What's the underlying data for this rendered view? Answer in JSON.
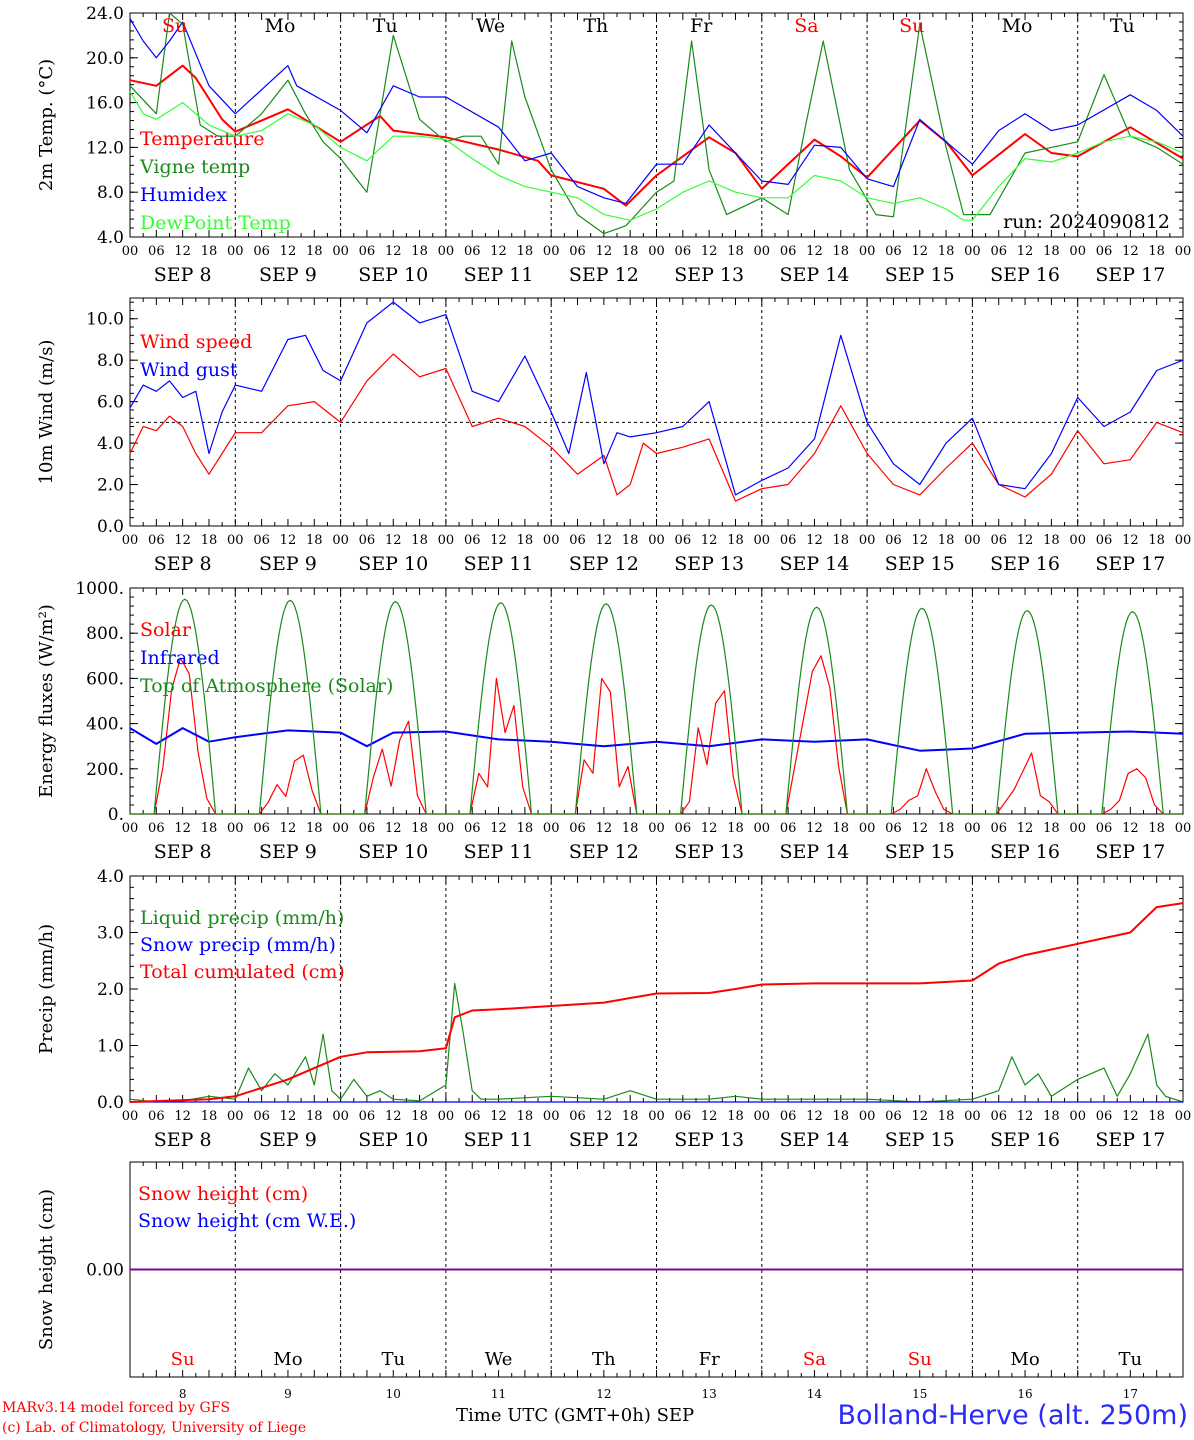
{
  "colors": {
    "red": "#ff0000",
    "green": "#1a8a1a",
    "blue": "#0000ff",
    "lightgreen": "#33ff33",
    "purple": "#8000a0"
  },
  "run_label": "run: 2024090812",
  "day_labels": [
    "Su",
    "Mo",
    "Tu",
    "We",
    "Th",
    "Fr",
    "Sa",
    "Su",
    "Mo",
    "Tu"
  ],
  "weekend_days": [
    0,
    6,
    7
  ],
  "date_labels": [
    "SEP  8",
    "SEP  9",
    "SEP 10",
    "SEP 11",
    "SEP 12",
    "SEP 13",
    "SEP 14",
    "SEP 15",
    "SEP 16",
    "SEP 17"
  ],
  "hour_labels": [
    "00",
    "06",
    "12",
    "18"
  ],
  "bottom_day_numbers": [
    "8",
    "9",
    "10",
    "11",
    "12",
    "13",
    "14",
    "15",
    "16",
    "17"
  ],
  "footer": {
    "model": "MARv3.14 model forced by GFS",
    "lab": "(c) Lab. of Climatology, University of Liege",
    "time_axis": "Time UTC (GMT+0h) SEP",
    "station": "Bolland-Herve (alt. 250m)"
  },
  "chart_data": [
    {
      "type": "line",
      "ylabel": "2m Temp. (°C)",
      "ylim": [
        4,
        24
      ],
      "yticks": [
        4,
        8,
        12,
        16,
        20,
        24
      ],
      "ytick_labels": [
        "4.0",
        "8.0",
        "12.0",
        "16.0",
        "20.0",
        "24.0"
      ],
      "x_range_hours": [
        0,
        240
      ],
      "x_unit": "hours since 2024-09-08 00 UTC",
      "series": [
        {
          "name": "Temperature",
          "color": "red",
          "x": [
            0,
            6,
            12,
            15,
            21,
            24,
            36,
            39,
            48,
            57,
            60,
            72,
            84,
            93,
            96,
            108,
            113,
            120,
            132,
            138,
            144,
            156,
            162,
            168,
            180,
            186,
            192,
            204,
            210,
            216,
            228,
            240
          ],
          "y": [
            18,
            17.5,
            19.3,
            18.2,
            14.5,
            13.4,
            15.4,
            14.7,
            12.5,
            14.8,
            13.5,
            12.9,
            11.8,
            10.8,
            9.5,
            8.3,
            6.8,
            9.5,
            12.9,
            11.5,
            8.3,
            12.7,
            11.2,
            9.3,
            14.4,
            12.5,
            9.5,
            13.2,
            11.5,
            11.2,
            13.8,
            11
          ]
        },
        {
          "name": "Vigne temp",
          "color": "green",
          "x": [
            0,
            6,
            9,
            12,
            16,
            20,
            24,
            30,
            36,
            40,
            44,
            48,
            54,
            60,
            66,
            72,
            76,
            80,
            84,
            87,
            90,
            96,
            102,
            108,
            113,
            120,
            124,
            128,
            132,
            136,
            144,
            150,
            154,
            158,
            164,
            170,
            174,
            180,
            186,
            190,
            196,
            204,
            210,
            216,
            222,
            228,
            234,
            240
          ],
          "y": [
            17.5,
            15,
            24,
            23,
            14,
            13,
            13,
            15,
            18,
            15,
            12.5,
            11,
            8,
            22,
            14.5,
            12.5,
            13,
            13,
            10.5,
            21.5,
            16.5,
            10,
            6,
            4.3,
            5,
            8,
            9,
            21.5,
            10,
            6,
            7.5,
            6,
            14,
            21.5,
            10,
            6,
            5.8,
            23,
            12,
            6,
            6,
            11.5,
            12,
            12.5,
            18.5,
            13,
            12,
            10.5
          ]
        },
        {
          "name": "Humidex",
          "color": "blue",
          "x": [
            0,
            3,
            6,
            9,
            12,
            18,
            24,
            36,
            38,
            48,
            54,
            60,
            66,
            72,
            84,
            90,
            96,
            102,
            108,
            113,
            120,
            126,
            132,
            138,
            144,
            150,
            156,
            162,
            168,
            174,
            180,
            186,
            192,
            198,
            204,
            210,
            216,
            228,
            234,
            240
          ],
          "y": [
            23.5,
            21.5,
            20,
            21.5,
            23.2,
            17.5,
            15,
            19.3,
            17.5,
            15.3,
            13.3,
            17.5,
            16.5,
            16.5,
            13.8,
            10.8,
            11.5,
            8.5,
            7.5,
            7,
            10.5,
            10.5,
            14,
            11.5,
            9,
            8.7,
            12.2,
            12,
            9.2,
            8.5,
            14.5,
            12.5,
            10.5,
            13.5,
            15,
            13.5,
            14,
            16.7,
            15.3,
            13
          ]
        },
        {
          "name": "DewPoint Temp",
          "color": "lightgreen",
          "x": [
            0,
            3,
            6,
            12,
            18,
            24,
            30,
            36,
            42,
            48,
            54,
            60,
            66,
            72,
            78,
            84,
            90,
            96,
            102,
            108,
            114,
            120,
            126,
            132,
            138,
            144,
            150,
            156,
            162,
            168,
            174,
            180,
            186,
            190,
            192,
            198,
            204,
            210,
            216,
            222,
            228,
            234,
            240
          ],
          "y": [
            17,
            15,
            14.5,
            16,
            14,
            13,
            13.5,
            15,
            14,
            12,
            10.8,
            13,
            13,
            12.7,
            11,
            9.5,
            8.5,
            8,
            7.5,
            6,
            5.5,
            6.5,
            8,
            9,
            8,
            7.5,
            7.5,
            9.5,
            9,
            7.5,
            7,
            7.5,
            6.5,
            5.5,
            5.5,
            8.5,
            11,
            10.7,
            11.5,
            12.5,
            13,
            12.5,
            11.5
          ]
        }
      ]
    },
    {
      "type": "line",
      "ylabel": "10m Wind (m/s)",
      "ylim": [
        0,
        11
      ],
      "yticks": [
        0,
        2,
        4,
        6,
        8,
        10
      ],
      "ytick_labels": [
        "0.0",
        "2.0",
        "4.0",
        "6.0",
        "8.0",
        "10.0"
      ],
      "reference_line": 5,
      "x_range_hours": [
        0,
        240
      ],
      "series": [
        {
          "name": "Wind speed",
          "color": "red",
          "x": [
            0,
            3,
            6,
            9,
            12,
            15,
            18,
            21,
            24,
            30,
            36,
            42,
            48,
            54,
            60,
            66,
            72,
            78,
            84,
            90,
            96,
            102,
            108,
            111,
            114,
            117,
            120,
            126,
            132,
            138,
            144,
            150,
            156,
            162,
            168,
            174,
            180,
            186,
            192,
            198,
            204,
            210,
            216,
            222,
            228,
            234,
            240
          ],
          "y": [
            3.5,
            4.8,
            4.6,
            5.3,
            4.8,
            3.5,
            2.5,
            3.5,
            4.5,
            4.5,
            5.8,
            6,
            5,
            7,
            8.3,
            7.2,
            7.6,
            4.8,
            5.2,
            4.8,
            3.8,
            2.5,
            3.4,
            1.5,
            2,
            4,
            3.5,
            3.8,
            4.2,
            1.2,
            1.8,
            2,
            3.5,
            5.8,
            3.5,
            2,
            1.5,
            2.8,
            4,
            2,
            1.4,
            2.5,
            4.6,
            3,
            3.2,
            5,
            4.5
          ]
        },
        {
          "name": "Wind gust",
          "color": "blue",
          "x": [
            0,
            3,
            6,
            9,
            12,
            15,
            18,
            21,
            24,
            30,
            36,
            40,
            44,
            48,
            54,
            60,
            63,
            66,
            72,
            78,
            84,
            90,
            96,
            100,
            104,
            108,
            111,
            114,
            120,
            126,
            132,
            138,
            144,
            150,
            156,
            162,
            168,
            174,
            180,
            186,
            192,
            198,
            204,
            210,
            216,
            222,
            228,
            234,
            240
          ],
          "y": [
            5.7,
            6.8,
            6.5,
            7,
            6.2,
            6.5,
            3.5,
            5.5,
            6.8,
            6.5,
            9,
            9.2,
            7.5,
            7,
            9.8,
            10.8,
            10.3,
            9.8,
            10.2,
            6.5,
            6,
            8.2,
            5.5,
            3.5,
            7.4,
            3,
            4.5,
            4.3,
            4.5,
            4.8,
            6,
            1.5,
            2.2,
            2.8,
            4.2,
            9.2,
            5,
            3,
            2,
            4,
            5.2,
            2,
            1.8,
            3.5,
            6.2,
            4.8,
            5.5,
            7.5,
            8
          ]
        }
      ]
    },
    {
      "type": "line",
      "ylabel": "Energy fluxes (W/m²)",
      "ylim": [
        0,
        1000
      ],
      "yticks": [
        0,
        200,
        400,
        600,
        800,
        1000
      ],
      "ytick_labels": [
        "0.",
        "200.",
        "400.",
        "600.",
        "800.",
        "1000."
      ],
      "x_range_hours": [
        0,
        240
      ],
      "series": [
        {
          "name": "Solar",
          "color": "red",
          "peaks": [
            690,
            260,
            410,
            600,
            600,
            545,
            700,
            200,
            270,
            200
          ]
        },
        {
          "name": "Infrared",
          "color": "blue",
          "x": [
            0,
            6,
            12,
            18,
            24,
            36,
            48,
            54,
            60,
            72,
            84,
            96,
            108,
            120,
            132,
            144,
            156,
            168,
            180,
            192,
            204,
            216,
            228,
            240
          ],
          "y": [
            380,
            310,
            380,
            320,
            340,
            370,
            360,
            300,
            360,
            365,
            330,
            320,
            300,
            320,
            300,
            330,
            320,
            330,
            280,
            290,
            355,
            360,
            365,
            355
          ]
        },
        {
          "name": "Top of Atmosphere (Solar)",
          "color": "green",
          "peaks": [
            950,
            945,
            940,
            935,
            930,
            925,
            915,
            910,
            900,
            895
          ]
        }
      ]
    },
    {
      "type": "line",
      "ylabel": "Precip (mm/h)",
      "ylim": [
        0,
        4
      ],
      "yticks": [
        0,
        1,
        2,
        3,
        4
      ],
      "ytick_labels": [
        "0.0",
        "1.0",
        "2.0",
        "3.0",
        "4.0"
      ],
      "x_range_hours": [
        0,
        240
      ],
      "series": [
        {
          "name": "Liquid precip (mm/h)",
          "color": "green",
          "x": [
            0,
            6,
            12,
            18,
            24,
            27,
            30,
            33,
            36,
            40,
            42,
            44,
            46,
            48,
            51,
            54,
            57,
            60,
            66,
            72,
            74,
            76,
            78,
            80,
            84,
            96,
            108,
            114,
            120,
            132,
            138,
            144,
            156,
            168,
            180,
            192,
            198,
            201,
            204,
            207,
            210,
            216,
            222,
            225,
            228,
            232,
            234,
            236,
            240
          ],
          "y": [
            0.05,
            0,
            0.02,
            0.1,
            0.05,
            0.6,
            0.2,
            0.5,
            0.3,
            0.8,
            0.3,
            1.2,
            0.2,
            0.05,
            0.4,
            0.1,
            0.2,
            0.05,
            0.02,
            0.3,
            2.1,
            1.2,
            0.2,
            0.05,
            0.05,
            0.1,
            0.05,
            0.2,
            0.05,
            0.05,
            0.1,
            0.05,
            0.05,
            0.05,
            0,
            0.05,
            0.2,
            0.8,
            0.3,
            0.5,
            0.1,
            0.4,
            0.6,
            0.1,
            0.5,
            1.2,
            0.3,
            0.1,
            0
          ]
        },
        {
          "name": "Snow precip (mm/h)",
          "color": "blue",
          "x": [
            0,
            240
          ],
          "y": [
            0,
            0
          ]
        },
        {
          "name": "Total cumulated (cm)",
          "color": "red",
          "x": [
            0,
            18,
            24,
            30,
            36,
            42,
            48,
            54,
            66,
            72,
            74,
            78,
            84,
            96,
            108,
            120,
            132,
            138,
            144,
            156,
            168,
            180,
            192,
            198,
            204,
            210,
            216,
            222,
            228,
            232,
            234,
            240
          ],
          "y": [
            0,
            0.05,
            0.1,
            0.25,
            0.4,
            0.6,
            0.8,
            0.88,
            0.9,
            0.95,
            1.5,
            1.62,
            1.64,
            1.7,
            1.76,
            1.92,
            1.93,
            2.0,
            2.08,
            2.1,
            2.1,
            2.1,
            2.15,
            2.45,
            2.6,
            2.7,
            2.8,
            2.9,
            3.0,
            3.3,
            3.45,
            3.52
          ]
        }
      ]
    },
    {
      "type": "line",
      "ylabel": "Snow height (cm)",
      "ylim": [
        -1,
        1
      ],
      "yticks": [
        0
      ],
      "ytick_labels": [
        "0.00"
      ],
      "x_range_hours": [
        0,
        240
      ],
      "series": [
        {
          "name": "Snow height (cm)",
          "color": "red",
          "x": [
            0,
            240
          ],
          "y": [
            0,
            0
          ]
        },
        {
          "name": "Snow height (cm W.E.)",
          "color": "blue",
          "x": [
            0,
            240
          ],
          "y": [
            0,
            0
          ]
        }
      ]
    }
  ]
}
